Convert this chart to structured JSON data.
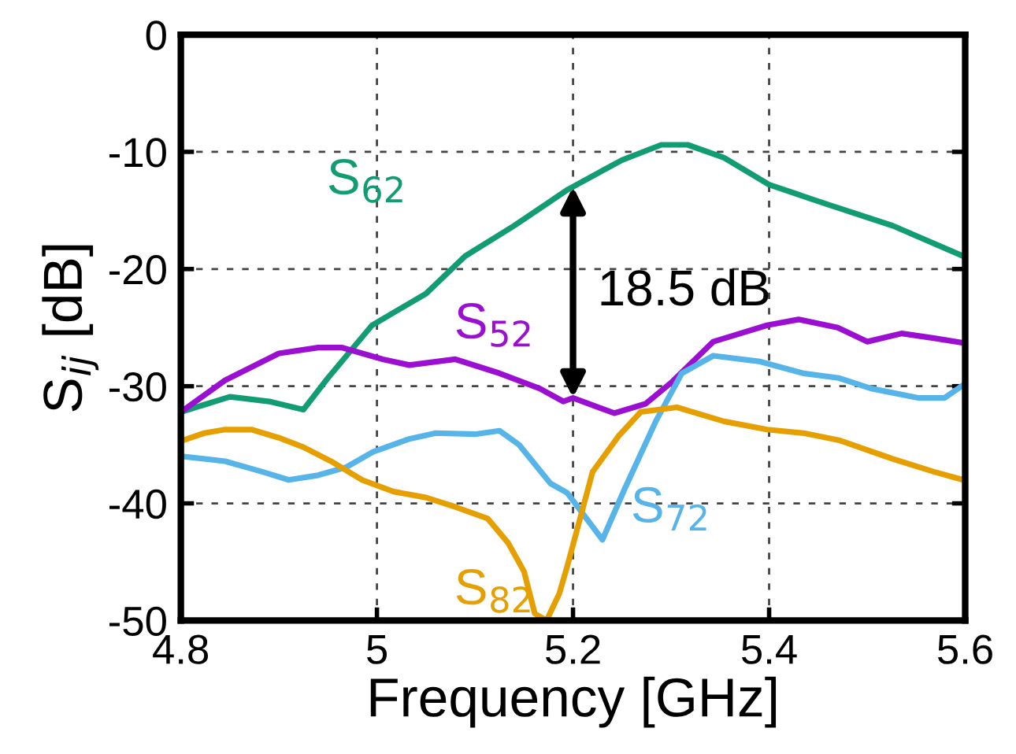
{
  "chart_data": {
    "type": "line",
    "xlabel": "Frequency [GHz]",
    "ylabel": "S$_{ij}$ [dB]",
    "xlim": [
      4.8,
      5.6
    ],
    "xticks": [
      4.8,
      5,
      5.2,
      5.4,
      5.6
    ],
    "ylim": [
      -50,
      0
    ],
    "yticks": [
      -50,
      -40,
      -30,
      -20,
      -10,
      0
    ],
    "grid": true,
    "legend": false,
    "marker": "none",
    "line_style": "solid",
    "series": [
      {
        "name": "S$_{62}$",
        "color": "#129c74",
        "x": [
          4.8,
          4.85,
          4.89,
          4.925,
          4.95,
          4.995,
          5.05,
          5.09,
          5.14,
          5.195,
          5.25,
          5.29,
          5.317,
          5.354,
          5.4,
          5.46,
          5.526,
          5.598
        ],
        "values": [
          -32.2,
          -30.9,
          -31.3,
          -32,
          -29.3,
          -24.8,
          -22.1,
          -18.9,
          -16.3,
          -13.2,
          -10.7,
          -9.4,
          -9.4,
          -10.5,
          -12.8,
          -14.5,
          -16.3,
          -18.9
        ]
      },
      {
        "name": "S$_{52}$",
        "color": "#9b10d0",
        "x": [
          4.8,
          4.845,
          4.9,
          4.94,
          4.964,
          5.006,
          5.033,
          5.08,
          5.125,
          5.166,
          5.19,
          5.2,
          5.242,
          5.274,
          5.3,
          5.343,
          5.398,
          5.43,
          5.47,
          5.5,
          5.535,
          5.568,
          5.598
        ],
        "values": [
          -32.2,
          -29.5,
          -27.2,
          -26.7,
          -26.7,
          -27.7,
          -28.2,
          -27.7,
          -28.9,
          -30.2,
          -31.3,
          -31,
          -32.3,
          -31.5,
          -29.7,
          -26.2,
          -24.8,
          -24.3,
          -25,
          -26.2,
          -25.5,
          -25.9,
          -26.3
        ]
      },
      {
        "name": "S$_{72}$",
        "color": "#56b4e9",
        "x": [
          4.803,
          4.845,
          4.883,
          4.91,
          4.94,
          4.969,
          4.996,
          5.033,
          5.06,
          5.1,
          5.125,
          5.145,
          5.177,
          5.194,
          5.23,
          5.253,
          5.285,
          5.311,
          5.343,
          5.391,
          5.435,
          5.471,
          5.504,
          5.552,
          5.579,
          5.598
        ],
        "values": [
          -36,
          -36.4,
          -37.3,
          -38,
          -37.6,
          -36.9,
          -35.6,
          -34.5,
          -34,
          -34.1,
          -33.8,
          -35,
          -38.3,
          -39.1,
          -43.1,
          -38.7,
          -32.9,
          -28.9,
          -27.4,
          -27.9,
          -28.9,
          -29.3,
          -30.2,
          -31,
          -31,
          -29.9
        ]
      },
      {
        "name": "S$_{82}$",
        "color": "#e69f00",
        "x": [
          4.803,
          4.824,
          4.845,
          4.872,
          4.9,
          4.925,
          4.953,
          4.985,
          5.017,
          5.05,
          5.08,
          5.113,
          5.134,
          5.15,
          5.161,
          5.173,
          5.186,
          5.194,
          5.22,
          5.247,
          5.269,
          5.306,
          5.354,
          5.398,
          5.435,
          5.471,
          5.526,
          5.568,
          5.598
        ],
        "values": [
          -34.6,
          -34,
          -33.7,
          -33.7,
          -34.4,
          -35.2,
          -36.4,
          -38,
          -39,
          -39.5,
          -40.3,
          -41.3,
          -43.4,
          -45.8,
          -49.4,
          -50,
          -47.7,
          -45.4,
          -37.3,
          -34.2,
          -32.2,
          -31.8,
          -33,
          -33.7,
          -34,
          -34.6,
          -36.2,
          -37.3,
          -38
        ]
      }
    ],
    "annotations": [
      "18.5 dB"
    ]
  }
}
